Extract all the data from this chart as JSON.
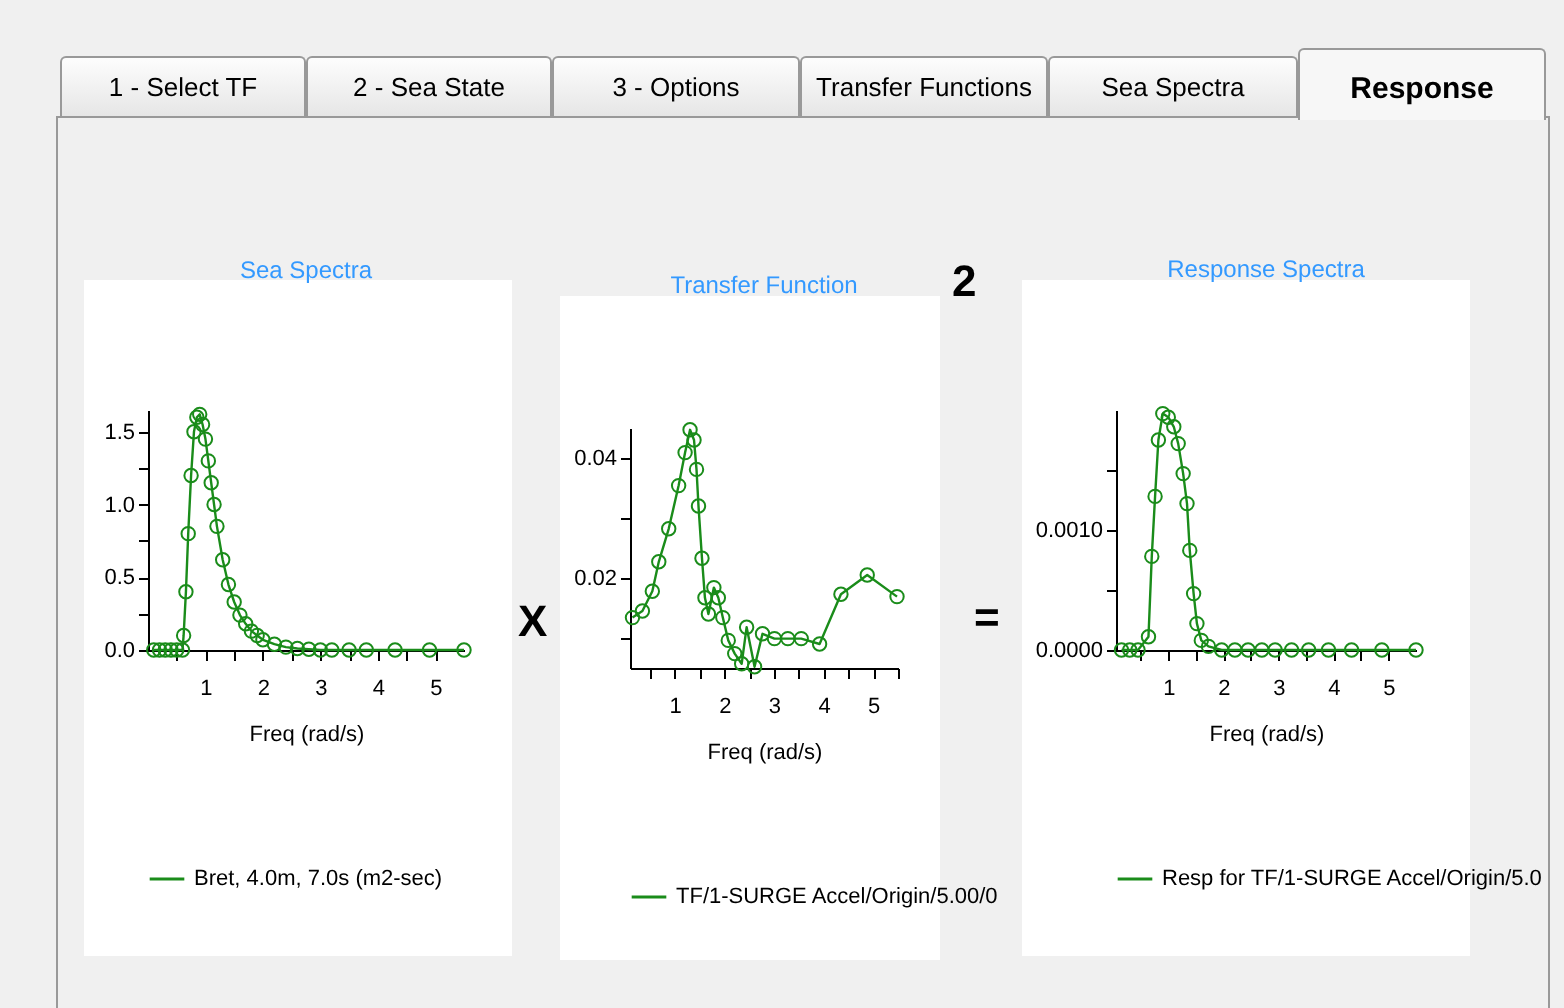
{
  "chart_data": [
    {
      "type": "other",
      "annotations": [
        "1 - Select TF",
        "2 - Sea State",
        "3 - Options",
        "Transfer Functions",
        "Sea Spectra",
        "Response",
        "X",
        "=",
        "2"
      ]
    },
    {
      "type": "line",
      "title": "Sea Spectra",
      "xlabel": "Freq (rad/s)",
      "xlim": [
        0,
        5.5
      ],
      "ylim": [
        0,
        1.65
      ],
      "marker": "circle",
      "legend": "bottom",
      "grid": false,
      "xticks": [
        {
          "value": 0.5,
          "label": null
        },
        1,
        {
          "value": 1.5,
          "label": null
        },
        2,
        {
          "value": 2.5,
          "label": null
        },
        3,
        {
          "value": 3.5,
          "label": null
        },
        4,
        {
          "value": 4.5,
          "label": null
        },
        5
      ],
      "yticks": [
        {
          "value": 0,
          "label": "0.0"
        },
        {
          "value": 0.25,
          "label": null
        },
        0.5,
        {
          "value": 0.75,
          "label": null
        },
        {
          "value": 1,
          "label": "1.0"
        },
        {
          "value": 1.25,
          "label": null
        },
        1.5
      ],
      "series": [
        {
          "name": "Bret, 4.0m, 7.0s (m2-sec)",
          "color": "#1a8c1a",
          "x": [
            0.1,
            0.2,
            0.3,
            0.4,
            0.5,
            0.6,
            0.62,
            0.66,
            0.7,
            0.75,
            0.8,
            0.85,
            0.9,
            0.95,
            1.0,
            1.05,
            1.1,
            1.15,
            1.2,
            1.3,
            1.4,
            1.5,
            1.6,
            1.7,
            1.8,
            1.9,
            2.0,
            2.2,
            2.4,
            2.6,
            2.8,
            3.0,
            3.2,
            3.5,
            3.8,
            4.3,
            4.9,
            5.5
          ],
          "values": [
            0,
            0,
            0,
            0,
            0,
            0,
            0.1,
            0.4,
            0.8,
            1.2,
            1.5,
            1.6,
            1.62,
            1.55,
            1.45,
            1.3,
            1.15,
            1.0,
            0.85,
            0.62,
            0.45,
            0.33,
            0.24,
            0.18,
            0.13,
            0.1,
            0.07,
            0.04,
            0.02,
            0.01,
            0.005,
            0,
            0,
            0,
            0,
            0,
            0,
            0
          ]
        }
      ]
    },
    {
      "type": "line",
      "title": "Transfer Function",
      "xlabel": "Freq (rad/s)",
      "xlim": [
        0.1,
        5.5
      ],
      "ylim": [
        0.005,
        0.045
      ],
      "marker": "circle",
      "legend": "bottom",
      "grid": false,
      "xticks": [
        {
          "value": 0.5,
          "label": null
        },
        1,
        {
          "value": 1.5,
          "label": null
        },
        2,
        {
          "value": 2.5,
          "label": null
        },
        3,
        {
          "value": 3.5,
          "label": null
        },
        4,
        {
          "value": 4.5,
          "label": null
        },
        5,
        {
          "value": 5.5,
          "label": null
        }
      ],
      "yticks": [
        {
          "value": 0.01,
          "label": null
        },
        0.02,
        {
          "value": 0.03,
          "label": null
        },
        0.04
      ],
      "series": [
        {
          "name": "TF/1-SURGE Accel/Origin/5.00/0",
          "color": "#1a8c1a",
          "x": [
            0.15,
            0.35,
            0.55,
            0.68,
            0.88,
            1.08,
            1.21,
            1.31,
            1.39,
            1.44,
            1.48,
            1.55,
            1.61,
            1.68,
            1.79,
            1.88,
            1.97,
            2.08,
            2.21,
            2.35,
            2.45,
            2.61,
            2.77,
            3.01,
            3.28,
            3.55,
            3.92,
            4.35,
            4.88,
            5.48
          ],
          "values": [
            0.0134,
            0.0145,
            0.0178,
            0.0227,
            0.0282,
            0.0354,
            0.0409,
            0.0447,
            0.043,
            0.0381,
            0.032,
            0.0233,
            0.0167,
            0.014,
            0.0184,
            0.0167,
            0.0134,
            0.0096,
            0.0074,
            0.0057,
            0.0118,
            0.0052,
            0.0107,
            0.0099,
            0.0099,
            0.0099,
            0.009,
            0.0173,
            0.0205,
            0.0169
          ]
        }
      ]
    },
    {
      "type": "line",
      "title": "Response Spectra",
      "xlabel": "Freq (rad/s)",
      "xlim": [
        0.05,
        5.5
      ],
      "ylim": [
        0,
        0.002
      ],
      "marker": "circle",
      "legend": "bottom",
      "grid": false,
      "xticks": [
        {
          "value": 0.5,
          "label": null
        },
        1,
        {
          "value": 1.5,
          "label": null
        },
        2,
        {
          "value": 2.5,
          "label": null
        },
        3,
        {
          "value": 3.5,
          "label": null
        },
        4,
        {
          "value": 4.5,
          "label": null
        },
        5
      ],
      "yticks": [
        {
          "value": 0,
          "label": "0.0000"
        },
        {
          "value": 0.0005,
          "label": null
        },
        {
          "value": 0.001,
          "label": "0.0010"
        },
        {
          "value": 0.0015,
          "label": null
        }
      ],
      "series": [
        {
          "name": "Resp for TF/1-SURGE Accel/Origin/5.0",
          "color": "#1a8c1a",
          "x": [
            0.15,
            0.3,
            0.45,
            0.64,
            0.7,
            0.76,
            0.82,
            0.9,
            1.0,
            1.1,
            1.18,
            1.27,
            1.34,
            1.39,
            1.46,
            1.52,
            1.6,
            1.73,
            1.97,
            2.21,
            2.45,
            2.7,
            2.94,
            3.24,
            3.55,
            3.91,
            4.33,
            4.88,
            5.5
          ],
          "values": [
            0,
            0,
            0,
            0.00011,
            0.00078,
            0.00128,
            0.00175,
            0.00197,
            0.00194,
            0.00186,
            0.00172,
            0.00147,
            0.00122,
            0.00083,
            0.00047,
            0.00022,
            8e-05,
            3e-05,
            0,
            0,
            0,
            0,
            0,
            0,
            0,
            0,
            0,
            0,
            0
          ]
        }
      ]
    }
  ]
}
